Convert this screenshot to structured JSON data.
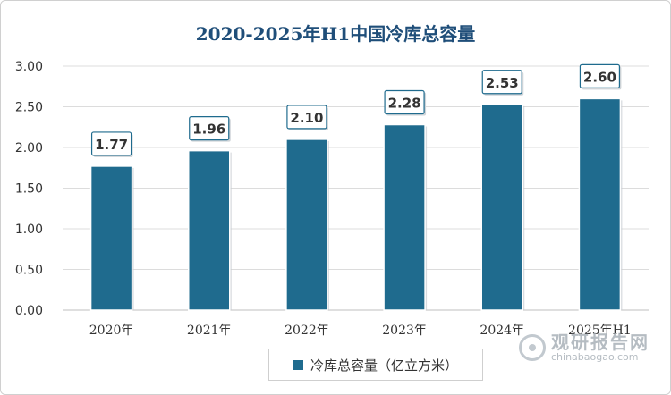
{
  "chart_data": {
    "type": "bar",
    "title": "2020-2025年H1中国冷库总容量",
    "categories": [
      "2020年",
      "2021年",
      "2022年",
      "2023年",
      "2024年",
      "2025年H1"
    ],
    "series": [
      {
        "name": "冷库总容量（亿立方米）",
        "values": [
          1.77,
          1.96,
          2.1,
          2.28,
          2.53,
          2.6
        ]
      }
    ],
    "data_labels": [
      "1.77",
      "1.96",
      "2.10",
      "2.28",
      "2.53",
      "2.60"
    ],
    "ylim": [
      0,
      3.0
    ],
    "yticks": [
      "0.00",
      "0.50",
      "1.00",
      "1.50",
      "2.00",
      "2.50",
      "3.00"
    ],
    "grid": true,
    "legend_position": "bottom",
    "bar_color": "#1f6b8e"
  },
  "watermark": {
    "name": "观研报告网",
    "url": "chinabaogao.com"
  }
}
